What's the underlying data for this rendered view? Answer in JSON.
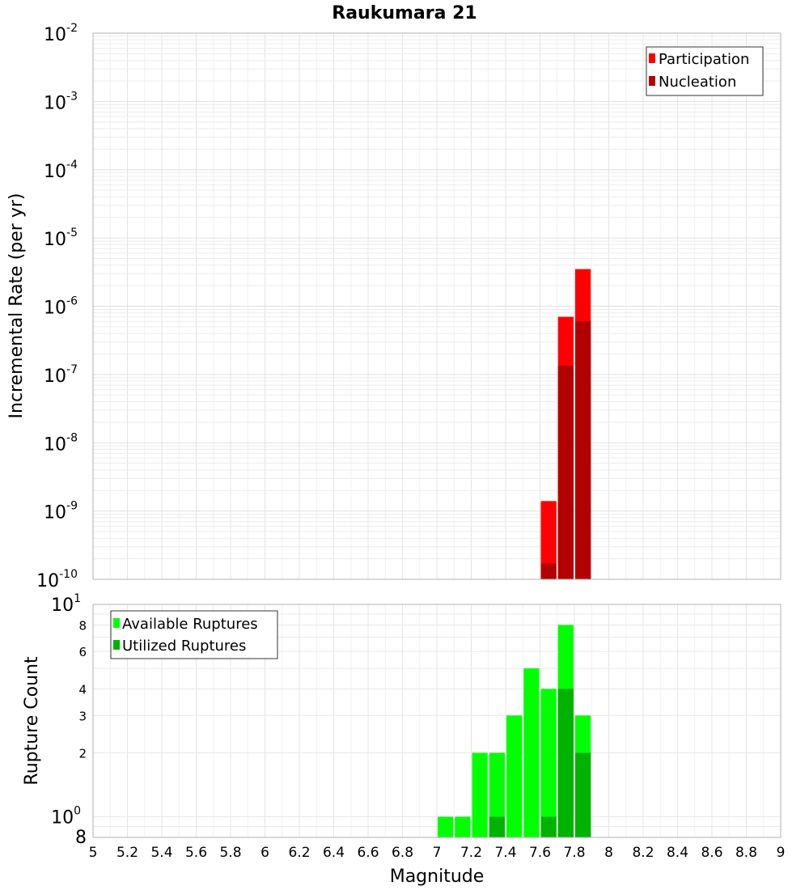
{
  "chart_data": [
    {
      "type": "bar",
      "title": "Raukumara 21",
      "xlabel": "",
      "ylabel": "Incremental Rate (per yr)",
      "yscale": "log",
      "xlim": [
        5,
        9
      ],
      "ylim": [
        1e-10,
        0.01
      ],
      "grid": true,
      "legend_position": "top-right",
      "y_tick_labels": [
        {
          "base": "10",
          "exp": "-2"
        },
        {
          "base": "10",
          "exp": "-3"
        },
        {
          "base": "10",
          "exp": "-4"
        },
        {
          "base": "10",
          "exp": "-5"
        },
        {
          "base": "10",
          "exp": "-6"
        },
        {
          "base": "10",
          "exp": "-7"
        },
        {
          "base": "10",
          "exp": "-8"
        },
        {
          "base": "10",
          "exp": "-9"
        },
        {
          "base": "10",
          "exp": "-10"
        }
      ],
      "bar_width": 0.1,
      "series": [
        {
          "name": "Participation",
          "color": "#ff0000",
          "x": [
            7.65,
            7.75,
            7.85
          ],
          "values": [
            1.4e-09,
            7e-07,
            3.5e-06
          ]
        },
        {
          "name": "Nucleation",
          "color": "#b30000",
          "x": [
            7.65,
            7.75,
            7.85
          ],
          "values": [
            1.7e-10,
            1.35e-07,
            6e-07
          ]
        }
      ]
    },
    {
      "type": "bar",
      "title": "",
      "xlabel": "Magnitude",
      "ylabel": "Rupture Count",
      "yscale": "log",
      "xlim": [
        5,
        9
      ],
      "ylim": [
        0.8,
        10
      ],
      "grid": true,
      "legend_position": "top-left",
      "x_tick_labels": [
        "5",
        "5.2",
        "5.4",
        "5.6",
        "5.8",
        "6",
        "6.2",
        "6.4",
        "6.6",
        "6.8",
        "7",
        "7.2",
        "7.4",
        "7.6",
        "7.8",
        "8",
        "8.2",
        "8.4",
        "8.6",
        "8.8",
        "9"
      ],
      "y_major_labels": [
        {
          "value": 10,
          "base": "10",
          "exp": "1"
        },
        {
          "value": 1,
          "base": "10",
          "exp": "0"
        }
      ],
      "y_minor_labels": [
        {
          "value": 8,
          "label": "8"
        },
        {
          "value": 6,
          "label": "6"
        },
        {
          "value": 4,
          "label": "4"
        },
        {
          "value": 3,
          "label": "3"
        },
        {
          "value": 2,
          "label": "2"
        },
        {
          "value": 0.8,
          "label": "8"
        }
      ],
      "bar_width": 0.1,
      "series": [
        {
          "name": "Available Ruptures",
          "color": "#00ff00",
          "x": [
            7.05,
            7.15,
            7.25,
            7.35,
            7.45,
            7.55,
            7.65,
            7.75,
            7.85
          ],
          "values": [
            1,
            1,
            2,
            2,
            3,
            5,
            4,
            8,
            3
          ]
        },
        {
          "name": "Utilized Ruptures",
          "color": "#00b300",
          "x": [
            7.35,
            7.65,
            7.75,
            7.85
          ],
          "values": [
            1,
            1,
            4,
            2
          ]
        }
      ]
    }
  ]
}
